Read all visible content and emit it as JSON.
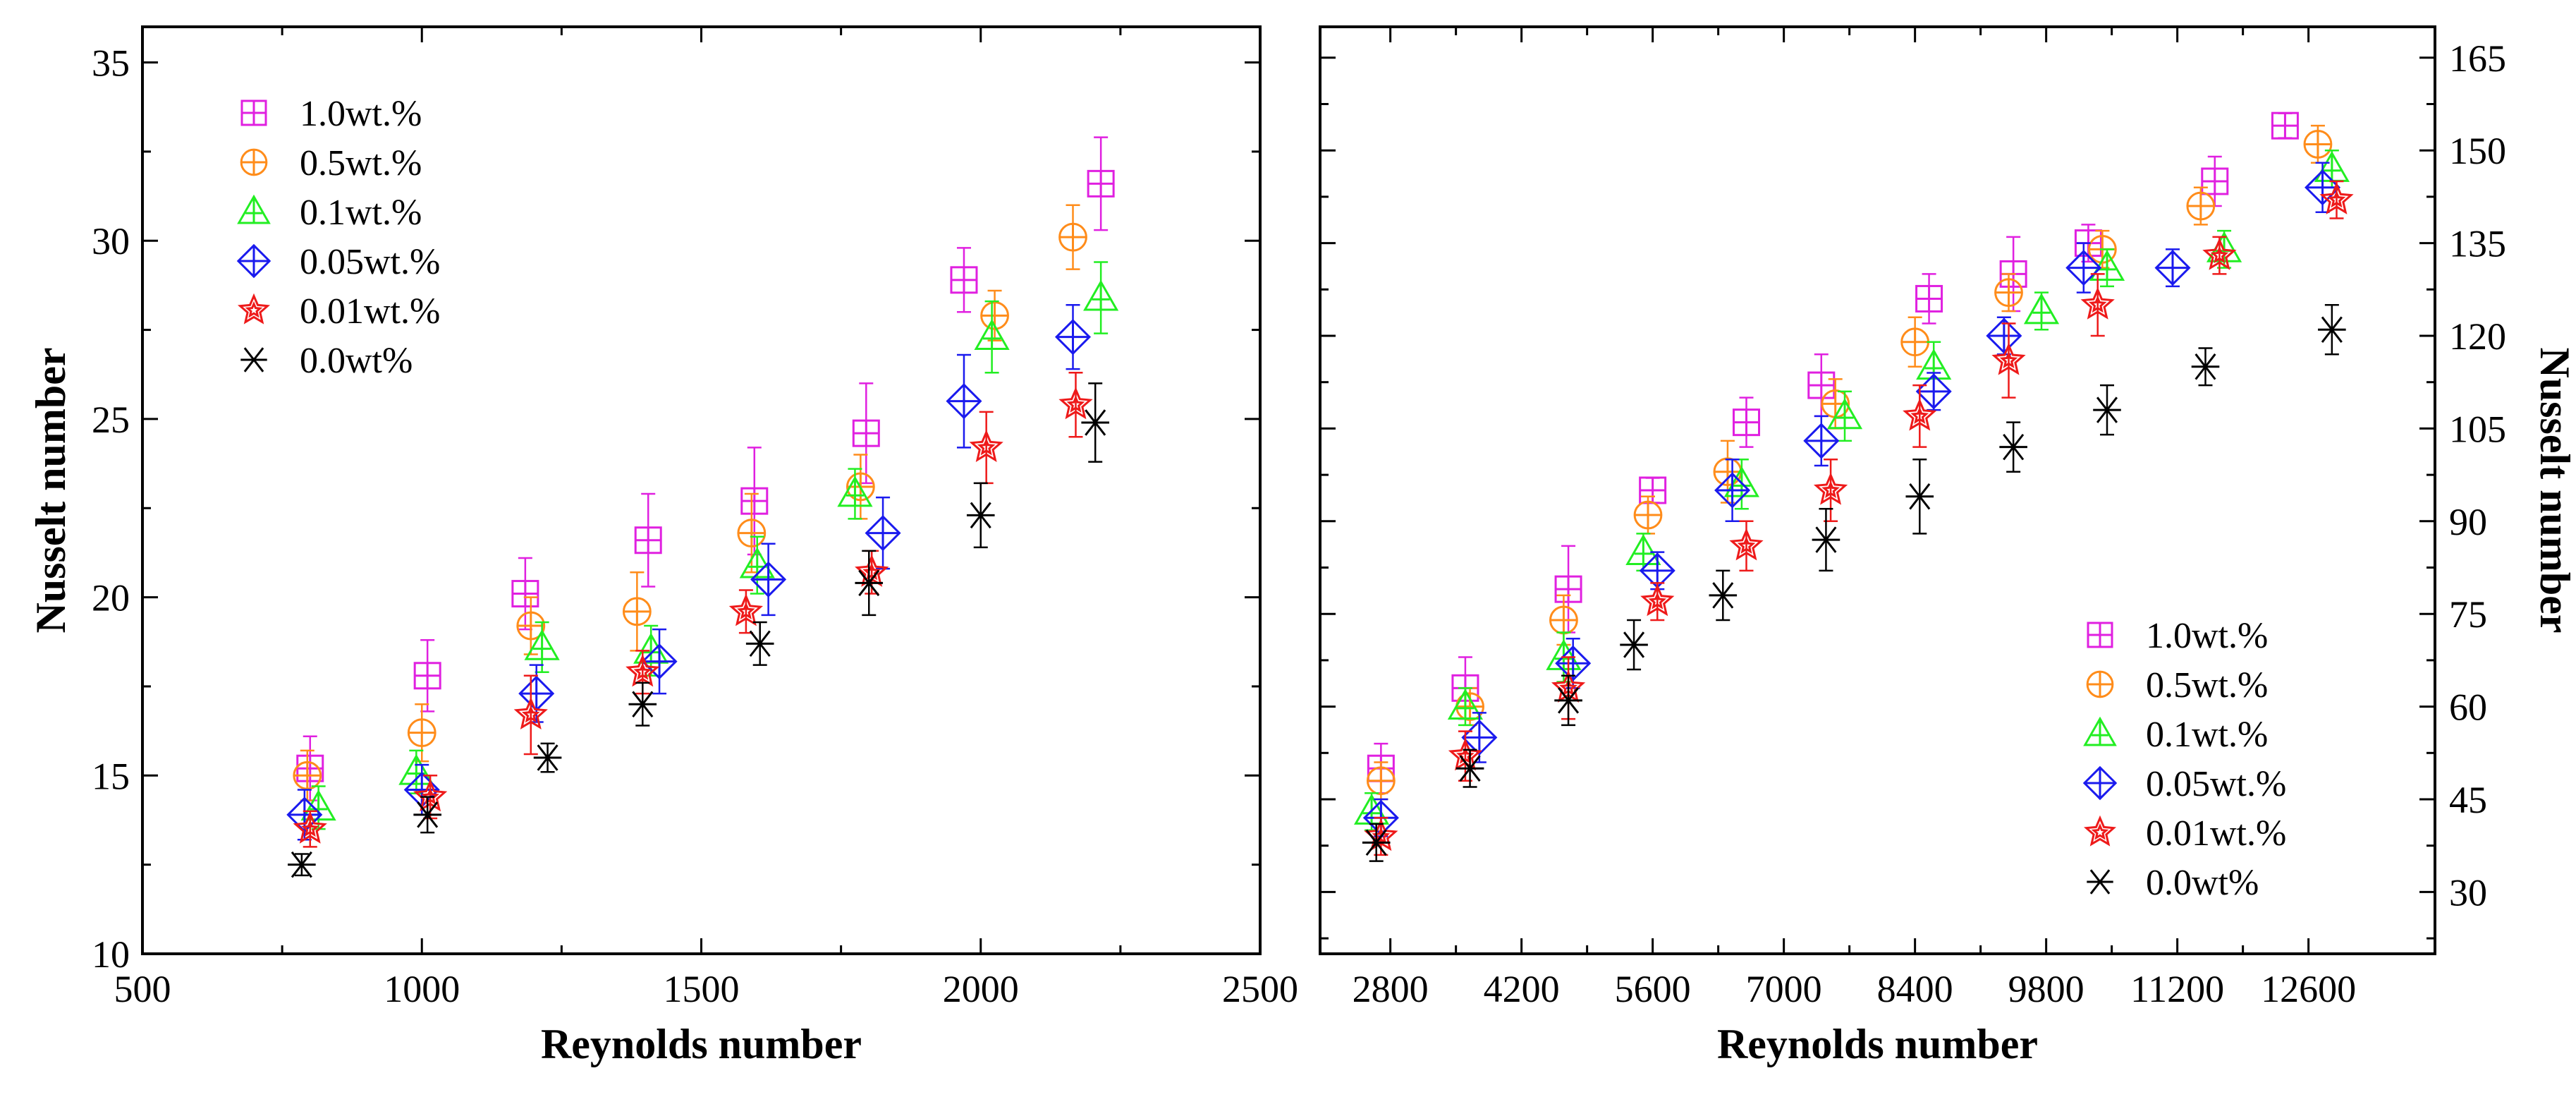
{
  "chart_data": [
    {
      "type": "scatter",
      "xlabel": "Reynolds number",
      "ylabel": "Nusselt number",
      "xlim": [
        500,
        2500
      ],
      "ylim": [
        10,
        36
      ],
      "xticks": [
        "500",
        "1000",
        "1500",
        "2000",
        "2500"
      ],
      "yticks": [
        "10",
        "15",
        "20",
        "25",
        "30",
        "35"
      ],
      "legend_position": "top-left",
      "series": [
        {
          "name": "1.0wt.%",
          "marker": "square-plus",
          "color": "#e020e0",
          "x": [
            800,
            1010,
            1185,
            1405,
            1595,
            1795,
            1970,
            2215
          ],
          "y": [
            15.2,
            17.8,
            20.1,
            21.6,
            22.7,
            24.6,
            28.9,
            31.6
          ],
          "err": [
            0.9,
            1.0,
            1.0,
            1.3,
            1.5,
            1.4,
            0.9,
            1.3
          ]
        },
        {
          "name": "0.5wt.%",
          "marker": "circle-plus",
          "color": "#ff8c1a",
          "x": [
            795,
            1000,
            1195,
            1385,
            1590,
            1785,
            2025,
            2165
          ],
          "y": [
            15.0,
            16.2,
            19.2,
            19.6,
            21.8,
            23.1,
            27.9,
            30.1
          ],
          "err": [
            0.7,
            0.8,
            0.8,
            1.1,
            1.1,
            0.9,
            0.7,
            0.9
          ]
        },
        {
          "name": "0.1wt.%",
          "marker": "triangle-plus",
          "color": "#22ee22",
          "x": [
            815,
            990,
            1215,
            1410,
            1600,
            1775,
            2020,
            2215
          ],
          "y": [
            14.1,
            15.1,
            18.6,
            18.5,
            20.9,
            22.9,
            27.3,
            28.4
          ],
          "err": [
            0.6,
            0.6,
            0.7,
            0.7,
            0.8,
            0.7,
            1.0,
            1.0
          ]
        },
        {
          "name": "0.05wt.%",
          "marker": "diamond-plus",
          "color": "#1a1aee",
          "x": [
            790,
            1000,
            1205,
            1425,
            1620,
            1825,
            1970,
            2165
          ],
          "y": [
            13.9,
            14.6,
            17.3,
            18.2,
            20.5,
            21.8,
            25.5,
            27.3
          ],
          "err": [
            0.7,
            0.7,
            0.8,
            0.9,
            1.0,
            1.0,
            1.3,
            0.9
          ]
        },
        {
          "name": "0.01wt.%",
          "marker": "star",
          "color": "#ee1a1a",
          "x": [
            800,
            1015,
            1195,
            1395,
            1580,
            1805,
            2010,
            2170
          ],
          "y": [
            13.5,
            14.4,
            16.7,
            17.9,
            19.6,
            20.7,
            24.2,
            25.4
          ],
          "err": [
            0.5,
            0.6,
            1.1,
            0.6,
            0.6,
            0.6,
            1.0,
            0.9
          ]
        },
        {
          "name": "0.0wt%",
          "marker": "asterisk",
          "color": "#000000",
          "x": [
            785,
            1010,
            1225,
            1395,
            1605,
            1800,
            2000,
            2205
          ],
          "y": [
            12.5,
            13.9,
            15.5,
            17.0,
            18.7,
            20.4,
            22.3,
            24.9
          ],
          "err": [
            0.3,
            0.5,
            0.4,
            0.6,
            0.6,
            0.9,
            0.9,
            1.1
          ]
        }
      ]
    },
    {
      "type": "scatter",
      "xlabel": "Reynolds number",
      "ylabel": "Nusselt number",
      "xlim": [
        2050,
        13950
      ],
      "ylim": [
        20,
        170
      ],
      "xticks": [
        "2800",
        "4200",
        "5600",
        "7000",
        "8400",
        "9800",
        "11200",
        "12600"
      ],
      "yticks": [
        "30",
        "45",
        "60",
        "75",
        "90",
        "105",
        "120",
        "135",
        "150",
        "165"
      ],
      "legend_position": "bottom-right",
      "series": [
        {
          "name": "1.0wt.%",
          "marker": "square-plus",
          "color": "#e020e0",
          "x": [
            2700,
            3600,
            4700,
            5600,
            6600,
            7400,
            8550,
            9450,
            10250,
            11600,
            12350
          ],
          "y": [
            50,
            63,
            79,
            95,
            106,
            112,
            126,
            130,
            135,
            145,
            154
          ],
          "err": [
            4,
            5,
            7,
            2,
            4,
            5,
            4,
            6,
            3,
            4,
            2
          ]
        },
        {
          "name": "0.5wt.%",
          "marker": "circle-plus",
          "color": "#ff8c1a",
          "x": [
            2700,
            3650,
            4650,
            5550,
            6400,
            7550,
            8400,
            9400,
            10400,
            11450,
            12700
          ],
          "y": [
            48,
            60,
            74,
            91,
            98,
            109,
            119,
            127,
            134,
            141,
            151
          ],
          "err": [
            3,
            3,
            4,
            3,
            5,
            4,
            4,
            3,
            3,
            3,
            3
          ]
        },
        {
          "name": "0.1wt.%",
          "marker": "triangle-plus",
          "color": "#22ee22",
          "x": [
            2600,
            3600,
            4650,
            5500,
            6550,
            7650,
            8600,
            9750,
            10450,
            11700,
            12850
          ],
          "y": [
            43,
            60,
            68,
            85,
            96,
            107,
            115,
            124,
            131,
            134,
            147
          ],
          "err": [
            3,
            3,
            4,
            3,
            4,
            4,
            4,
            3,
            3,
            3,
            3
          ]
        },
        {
          "name": "0.05wt.%",
          "marker": "diamond-plus",
          "color": "#1a1aee",
          "x": [
            2700,
            3750,
            4750,
            5650,
            6450,
            7400,
            8600,
            9350,
            10200,
            11150,
            12750
          ],
          "y": [
            42,
            55,
            67,
            82,
            95,
            103,
            111,
            120,
            131,
            131,
            144
          ],
          "err": [
            3,
            4,
            4,
            3,
            5,
            4,
            3,
            3,
            4,
            3,
            4
          ]
        },
        {
          "name": "0.01wt.%",
          "marker": "star",
          "color": "#ee1a1a",
          "x": [
            2700,
            3600,
            4700,
            5650,
            6600,
            7500,
            8450,
            9400,
            10350,
            11650,
            12900
          ],
          "y": [
            39,
            52,
            63,
            77,
            86,
            95,
            107,
            116,
            125,
            133,
            142
          ],
          "err": [
            3,
            4,
            5,
            3,
            4,
            5,
            5,
            6,
            5,
            3,
            3
          ]
        },
        {
          "name": "0.0wt%",
          "marker": "asterisk",
          "color": "#000000",
          "x": [
            2650,
            3650,
            4700,
            5400,
            6350,
            7450,
            8450,
            9450,
            10450,
            11500,
            12850
          ],
          "y": [
            38,
            50,
            61,
            70,
            78,
            87,
            94,
            102,
            108,
            115,
            121
          ],
          "err": [
            3,
            3,
            4,
            4,
            4,
            5,
            6,
            4,
            4,
            3,
            4
          ]
        }
      ]
    }
  ]
}
